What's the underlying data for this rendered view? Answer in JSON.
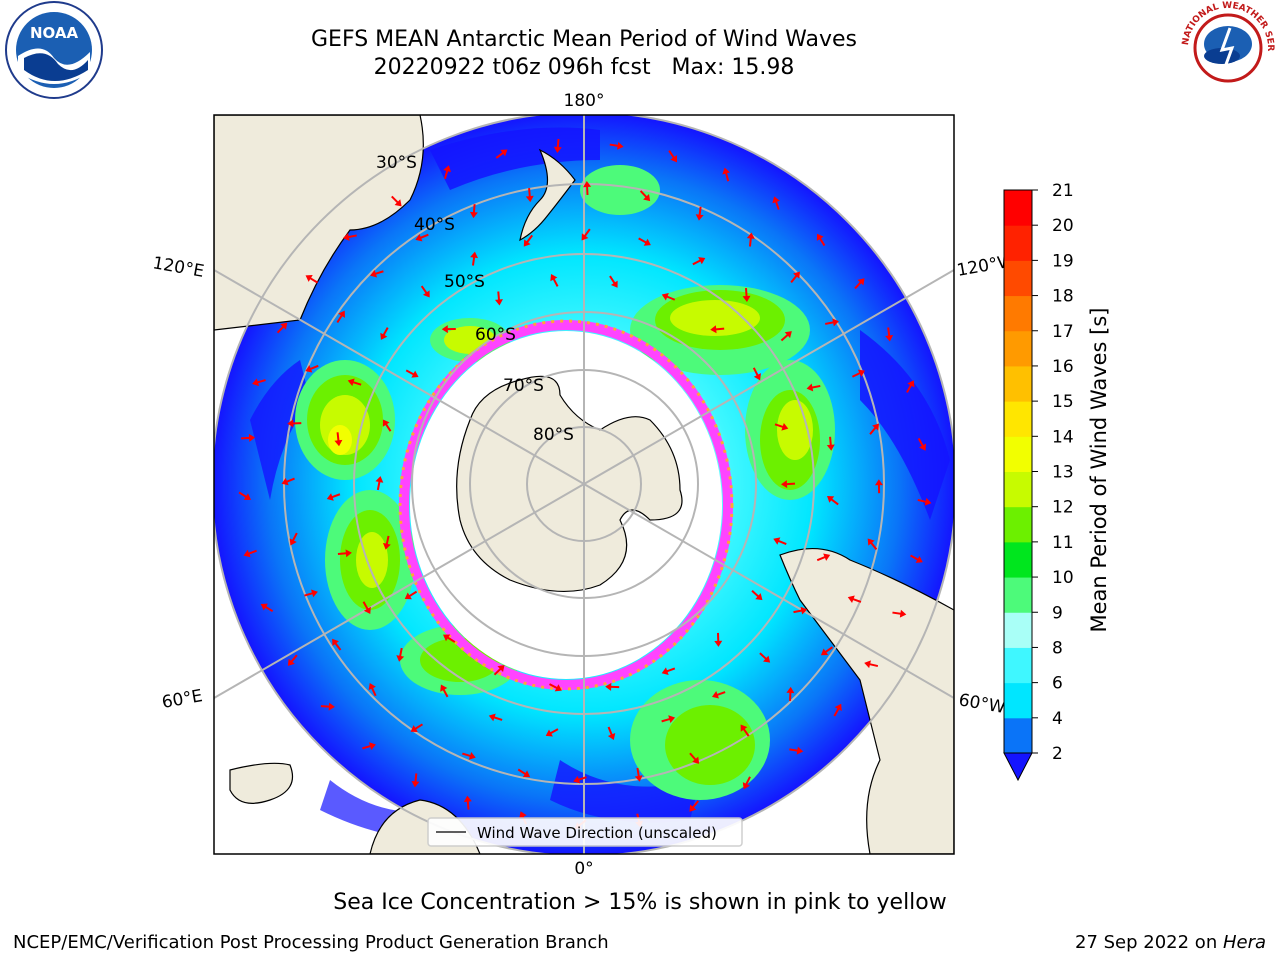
{
  "title_line1": "GEFS MEAN Antarctic Mean Period of Wind Waves",
  "title_line2": "20220922 t06z 096h fcst   Max: 15.98",
  "longitude_labels": {
    "top": "180°",
    "bottom": "0°",
    "left_upper": "120°E",
    "left_lower": "60°E",
    "right_upper": "120°W",
    "right_lower": "60°W"
  },
  "latitude_labels": [
    "30°S",
    "40°S",
    "50°S",
    "60°S",
    "70°S",
    "80°S"
  ],
  "legend_label": "Wind Wave Direction (unscaled)",
  "colorbar": {
    "label": "Mean Period of Wind Waves [s]",
    "ticks": [
      "2",
      "4",
      "6",
      "8",
      "9",
      "10",
      "11",
      "12",
      "13",
      "14",
      "15",
      "16",
      "17",
      "18",
      "19",
      "20",
      "21"
    ],
    "colors": [
      "#0a74f8",
      "#00e6ff",
      "#3ff7ff",
      "#a9fff7",
      "#4dfa7a",
      "#00e61e",
      "#6cf000",
      "#c7fb00",
      "#f2ff00",
      "#ffe600",
      "#ffc000",
      "#ff9a00",
      "#ff7a00",
      "#ff4a00",
      "#ff2200",
      "#ff0000"
    ],
    "under_color": "#1414ff"
  },
  "caption": "Sea Ice Concentration > 15% is shown in pink to yellow",
  "footer_left": "NCEP/EMC/Verification Post Processing Product Generation Branch",
  "footer_right_prefix": "27 Sep 2022 on ",
  "footer_right_machine": "Hera",
  "logos": {
    "noaa_text": "NOAA",
    "nws_text": "NATIONAL WEATHER SERVICE"
  }
}
